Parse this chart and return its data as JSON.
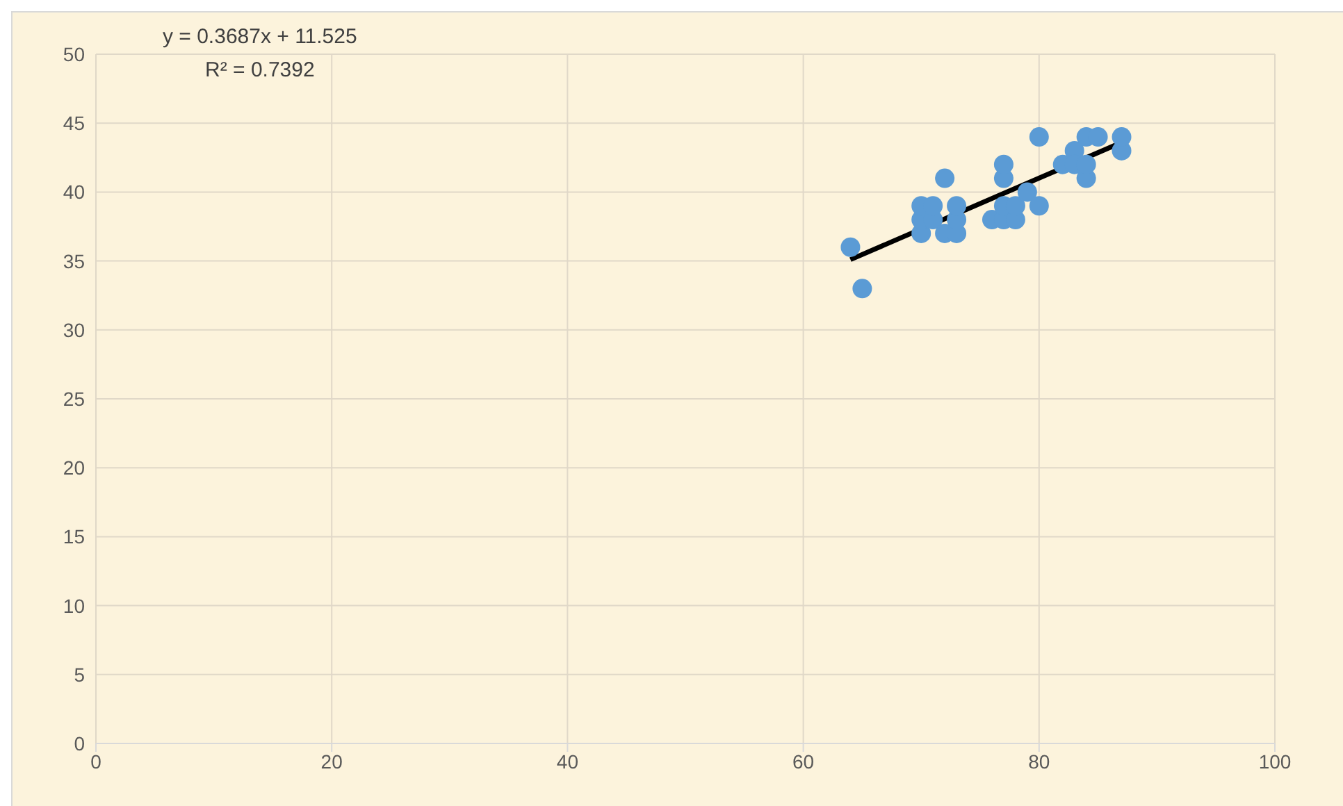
{
  "chart_data": {
    "type": "scatter",
    "annotations": [
      "y = 0.3687x + 11.525",
      "R² = 0.7392"
    ],
    "x": [
      64,
      65,
      70,
      70,
      70,
      71,
      71,
      72,
      72,
      73,
      73,
      73,
      76,
      77,
      77,
      77,
      77,
      78,
      78,
      79,
      80,
      80,
      82,
      83,
      83,
      84,
      84,
      84,
      85,
      87,
      87
    ],
    "series": [
      {
        "color": "#5b9bd5",
        "marker": "circle",
        "values": [
          36,
          33,
          37,
          38,
          39,
          38,
          39,
          37,
          41,
          37,
          38,
          39,
          38,
          38,
          39,
          41,
          42,
          38,
          39,
          40,
          39,
          44,
          42,
          43,
          42,
          41,
          42,
          44,
          44,
          43,
          44
        ]
      },
      {
        "type": "line",
        "color": "#000000",
        "marker": "none",
        "x": [
          64,
          87
        ],
        "values": [
          35.1,
          43.6
        ]
      }
    ],
    "xlim": [
      0,
      100
    ],
    "xticks": [
      0,
      20,
      40,
      60,
      80,
      100
    ],
    "ylim": [
      0,
      50
    ],
    "yticks": [
      0,
      5,
      10,
      15,
      20,
      25,
      30,
      35,
      40,
      45,
      50
    ],
    "grid": true,
    "legend": false
  }
}
